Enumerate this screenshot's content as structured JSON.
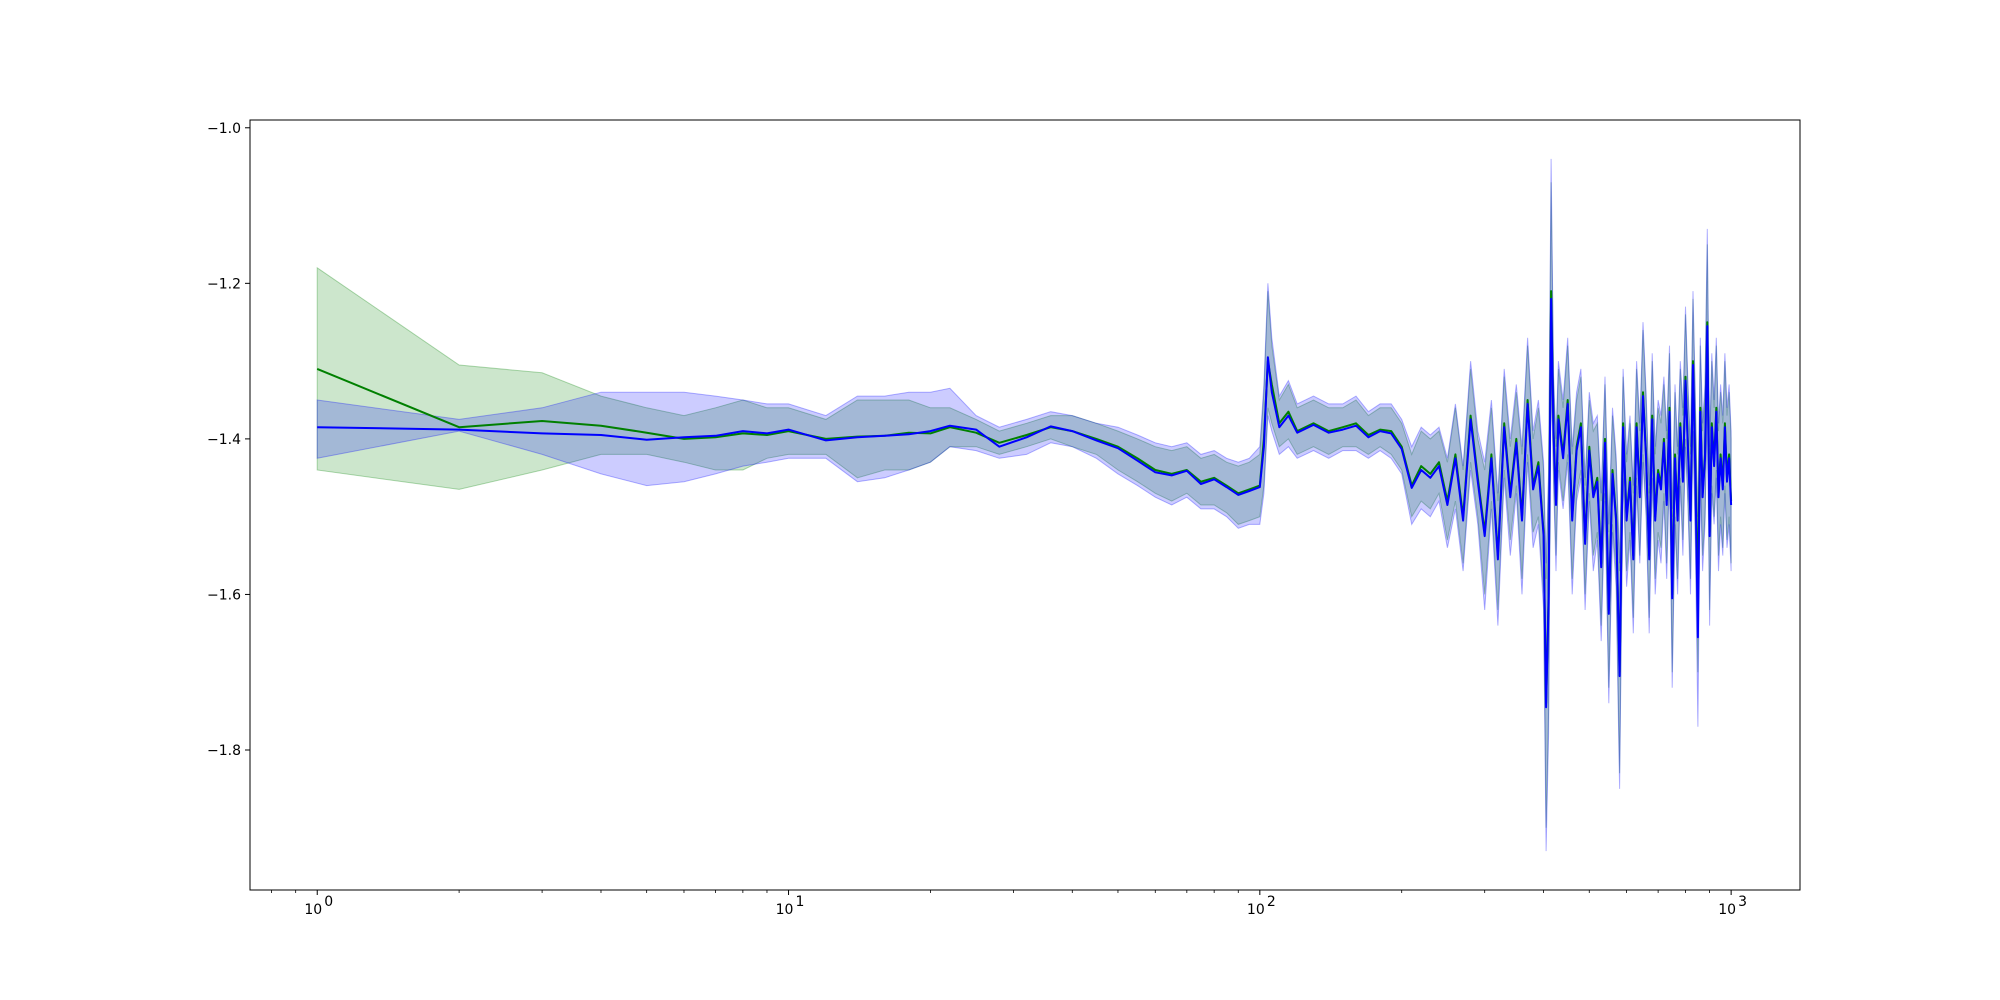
{
  "chart_data": {
    "type": "line",
    "title": "",
    "xlabel": "",
    "ylabel": "",
    "xscale": "log",
    "xlim": [
      0.72,
      1400
    ],
    "ylim": [
      -1.98,
      -0.99
    ],
    "grid": false,
    "xticks": [
      {
        "value": 1,
        "base": "10",
        "exp": "0"
      },
      {
        "value": 10,
        "base": "10",
        "exp": "1"
      },
      {
        "value": 100,
        "base": "10",
        "exp": "2"
      },
      {
        "value": 1000,
        "base": "10",
        "exp": "3"
      }
    ],
    "yticks": [
      {
        "value": -1.0,
        "label": "−1.0"
      },
      {
        "value": -1.2,
        "label": "−1.2"
      },
      {
        "value": -1.4,
        "label": "−1.4"
      },
      {
        "value": -1.6,
        "label": "−1.6"
      },
      {
        "value": -1.8,
        "label": "−1.8"
      }
    ],
    "series": [
      {
        "color": "#008000",
        "band_color": "#008000",
        "band_opacity": 0.2,
        "x": [
          1,
          2,
          3,
          4,
          5,
          6,
          7,
          8,
          9,
          10,
          12,
          14,
          16,
          18,
          20,
          22,
          25,
          28,
          32,
          36,
          40,
          45,
          50,
          55,
          60,
          65,
          70,
          75,
          80,
          85,
          90,
          95,
          100,
          102,
          104,
          106,
          110,
          115,
          120,
          130,
          140,
          150,
          160,
          170,
          180,
          190,
          200,
          210,
          220,
          230,
          240,
          250,
          260,
          270,
          280,
          290,
          300,
          310,
          320,
          330,
          340,
          350,
          360,
          370,
          380,
          390,
          400,
          405,
          410,
          415,
          420,
          425,
          430,
          440,
          450,
          460,
          470,
          480,
          490,
          500,
          510,
          520,
          530,
          540,
          550,
          560,
          570,
          580,
          590,
          600,
          610,
          620,
          630,
          640,
          650,
          660,
          670,
          680,
          690,
          700,
          710,
          720,
          730,
          740,
          750,
          760,
          770,
          780,
          790,
          800,
          810,
          820,
          830,
          840,
          850,
          860,
          870,
          880,
          890,
          900,
          910,
          920,
          930,
          940,
          950,
          960,
          970,
          980,
          990,
          1000
        ],
        "y": [
          -1.31,
          -1.385,
          -1.377,
          -1.383,
          -1.392,
          -1.4,
          -1.398,
          -1.393,
          -1.395,
          -1.39,
          -1.4,
          -1.397,
          -1.396,
          -1.392,
          -1.393,
          -1.385,
          -1.392,
          -1.405,
          -1.395,
          -1.385,
          -1.39,
          -1.4,
          -1.41,
          -1.425,
          -1.44,
          -1.445,
          -1.44,
          -1.455,
          -1.45,
          -1.46,
          -1.47,
          -1.465,
          -1.46,
          -1.4,
          -1.3,
          -1.33,
          -1.38,
          -1.365,
          -1.39,
          -1.38,
          -1.39,
          -1.385,
          -1.38,
          -1.395,
          -1.388,
          -1.39,
          -1.41,
          -1.46,
          -1.435,
          -1.445,
          -1.43,
          -1.48,
          -1.42,
          -1.5,
          -1.37,
          -1.45,
          -1.52,
          -1.42,
          -1.55,
          -1.38,
          -1.47,
          -1.4,
          -1.5,
          -1.35,
          -1.46,
          -1.43,
          -1.52,
          -1.74,
          -1.6,
          -1.21,
          -1.39,
          -1.48,
          -1.37,
          -1.42,
          -1.35,
          -1.5,
          -1.41,
          -1.38,
          -1.53,
          -1.41,
          -1.47,
          -1.45,
          -1.56,
          -1.4,
          -1.62,
          -1.44,
          -1.5,
          -1.7,
          -1.38,
          -1.5,
          -1.45,
          -1.55,
          -1.38,
          -1.47,
          -1.34,
          -1.42,
          -1.55,
          -1.37,
          -1.5,
          -1.44,
          -1.46,
          -1.4,
          -1.48,
          -1.36,
          -1.6,
          -1.42,
          -1.5,
          -1.38,
          -1.45,
          -1.32,
          -1.41,
          -1.5,
          -1.3,
          -1.44,
          -1.6,
          -1.36,
          -1.47,
          -1.42,
          -1.25,
          -1.52,
          -1.38,
          -1.43,
          -1.36,
          -1.47,
          -1.42,
          -1.46,
          -1.38,
          -1.45,
          -1.42,
          -1.48
        ],
        "lower": [
          -1.44,
          -1.465,
          -1.44,
          -1.42,
          -1.42,
          -1.43,
          -1.44,
          -1.44,
          -1.425,
          -1.42,
          -1.42,
          -1.45,
          -1.44,
          -1.44,
          -1.43,
          -1.41,
          -1.41,
          -1.42,
          -1.41,
          -1.4,
          -1.41,
          -1.42,
          -1.44,
          -1.455,
          -1.47,
          -1.48,
          -1.47,
          -1.485,
          -1.485,
          -1.495,
          -1.51,
          -1.505,
          -1.5,
          -1.46,
          -1.36,
          -1.38,
          -1.41,
          -1.4,
          -1.42,
          -1.41,
          -1.42,
          -1.41,
          -1.41,
          -1.42,
          -1.41,
          -1.42,
          -1.44,
          -1.5,
          -1.48,
          -1.49,
          -1.47,
          -1.53,
          -1.48,
          -1.56,
          -1.43,
          -1.5,
          -1.6,
          -1.48,
          -1.62,
          -1.44,
          -1.53,
          -1.46,
          -1.58,
          -1.42,
          -1.52,
          -1.5,
          -1.6,
          -1.9,
          -1.75,
          -1.3,
          -1.45,
          -1.55,
          -1.43,
          -1.48,
          -1.42,
          -1.58,
          -1.47,
          -1.44,
          -1.6,
          -1.47,
          -1.55,
          -1.52,
          -1.64,
          -1.47,
          -1.72,
          -1.51,
          -1.57,
          -1.83,
          -1.44,
          -1.57,
          -1.52,
          -1.63,
          -1.45,
          -1.55,
          -1.42,
          -1.49,
          -1.63,
          -1.44,
          -1.58,
          -1.52,
          -1.54,
          -1.47,
          -1.56,
          -1.43,
          -1.7,
          -1.5,
          -1.58,
          -1.45,
          -1.53,
          -1.4,
          -1.48,
          -1.58,
          -1.38,
          -1.52,
          -1.7,
          -1.44,
          -1.55,
          -1.5,
          -1.35,
          -1.62,
          -1.46,
          -1.5,
          -1.44,
          -1.55,
          -1.5,
          -1.54,
          -1.46,
          -1.53,
          -1.5,
          -1.56
        ],
        "upper": [
          -1.18,
          -1.305,
          -1.315,
          -1.345,
          -1.36,
          -1.37,
          -1.36,
          -1.35,
          -1.36,
          -1.36,
          -1.375,
          -1.35,
          -1.35,
          -1.35,
          -1.36,
          -1.36,
          -1.375,
          -1.39,
          -1.38,
          -1.37,
          -1.37,
          -1.38,
          -1.39,
          -1.4,
          -1.41,
          -1.415,
          -1.41,
          -1.425,
          -1.42,
          -1.43,
          -1.435,
          -1.43,
          -1.42,
          -1.34,
          -1.21,
          -1.28,
          -1.35,
          -1.33,
          -1.36,
          -1.35,
          -1.36,
          -1.36,
          -1.35,
          -1.37,
          -1.36,
          -1.36,
          -1.38,
          -1.42,
          -1.39,
          -1.4,
          -1.39,
          -1.43,
          -1.36,
          -1.44,
          -1.31,
          -1.4,
          -1.44,
          -1.36,
          -1.48,
          -1.32,
          -1.41,
          -1.34,
          -1.42,
          -1.28,
          -1.4,
          -1.36,
          -1.44,
          -1.58,
          -1.45,
          -1.07,
          -1.33,
          -1.41,
          -1.31,
          -1.36,
          -1.28,
          -1.42,
          -1.35,
          -1.32,
          -1.46,
          -1.35,
          -1.39,
          -1.38,
          -1.48,
          -1.33,
          -1.52,
          -1.37,
          -1.43,
          -1.57,
          -1.32,
          -1.43,
          -1.38,
          -1.47,
          -1.31,
          -1.39,
          -1.26,
          -1.35,
          -1.47,
          -1.3,
          -1.42,
          -1.36,
          -1.38,
          -1.33,
          -1.4,
          -1.29,
          -1.5,
          -1.34,
          -1.42,
          -1.31,
          -1.37,
          -1.24,
          -1.34,
          -1.42,
          -1.22,
          -1.36,
          -1.5,
          -1.28,
          -1.39,
          -1.34,
          -1.15,
          -1.42,
          -1.3,
          -1.36,
          -1.28,
          -1.39,
          -1.34,
          -1.38,
          -1.3,
          -1.37,
          -1.34,
          -1.4
        ]
      },
      {
        "color": "#0000ff",
        "band_color": "#0000ff",
        "band_opacity": 0.2,
        "x": [
          1,
          2,
          3,
          4,
          5,
          6,
          7,
          8,
          9,
          10,
          12,
          14,
          16,
          18,
          20,
          22,
          25,
          28,
          32,
          36,
          40,
          45,
          50,
          55,
          60,
          65,
          70,
          75,
          80,
          85,
          90,
          95,
          100,
          102,
          104,
          106,
          110,
          115,
          120,
          130,
          140,
          150,
          160,
          170,
          180,
          190,
          200,
          210,
          220,
          230,
          240,
          250,
          260,
          270,
          280,
          290,
          300,
          310,
          320,
          330,
          340,
          350,
          360,
          370,
          380,
          390,
          400,
          405,
          410,
          415,
          420,
          425,
          430,
          440,
          450,
          460,
          470,
          480,
          490,
          500,
          510,
          520,
          530,
          540,
          550,
          560,
          570,
          580,
          590,
          600,
          610,
          620,
          630,
          640,
          650,
          660,
          670,
          680,
          690,
          700,
          710,
          720,
          730,
          740,
          750,
          760,
          770,
          780,
          790,
          800,
          810,
          820,
          830,
          840,
          850,
          860,
          870,
          880,
          890,
          900,
          910,
          920,
          930,
          940,
          950,
          960,
          970,
          980,
          990,
          1000
        ],
        "y": [
          -1.385,
          -1.388,
          -1.393,
          -1.395,
          -1.401,
          -1.398,
          -1.396,
          -1.39,
          -1.393,
          -1.388,
          -1.402,
          -1.398,
          -1.396,
          -1.394,
          -1.39,
          -1.383,
          -1.388,
          -1.41,
          -1.398,
          -1.384,
          -1.39,
          -1.402,
          -1.412,
          -1.428,
          -1.443,
          -1.447,
          -1.441,
          -1.458,
          -1.452,
          -1.462,
          -1.472,
          -1.467,
          -1.462,
          -1.41,
          -1.295,
          -1.34,
          -1.385,
          -1.37,
          -1.392,
          -1.382,
          -1.392,
          -1.388,
          -1.383,
          -1.398,
          -1.39,
          -1.393,
          -1.413,
          -1.463,
          -1.44,
          -1.45,
          -1.435,
          -1.485,
          -1.425,
          -1.505,
          -1.375,
          -1.455,
          -1.525,
          -1.425,
          -1.555,
          -1.385,
          -1.475,
          -1.405,
          -1.505,
          -1.355,
          -1.465,
          -1.435,
          -1.525,
          -1.745,
          -1.61,
          -1.22,
          -1.395,
          -1.485,
          -1.375,
          -1.425,
          -1.355,
          -1.505,
          -1.415,
          -1.385,
          -1.535,
          -1.415,
          -1.475,
          -1.455,
          -1.565,
          -1.405,
          -1.625,
          -1.445,
          -1.505,
          -1.705,
          -1.385,
          -1.505,
          -1.455,
          -1.555,
          -1.385,
          -1.475,
          -1.345,
          -1.425,
          -1.555,
          -1.375,
          -1.505,
          -1.445,
          -1.465,
          -1.405,
          -1.485,
          -1.365,
          -1.605,
          -1.425,
          -1.505,
          -1.385,
          -1.455,
          -1.325,
          -1.415,
          -1.505,
          -1.305,
          -1.445,
          -1.655,
          -1.365,
          -1.475,
          -1.425,
          -1.255,
          -1.525,
          -1.385,
          -1.435,
          -1.365,
          -1.475,
          -1.425,
          -1.465,
          -1.385,
          -1.455,
          -1.425,
          -1.485
        ],
        "lower": [
          -1.425,
          -1.39,
          -1.42,
          -1.445,
          -1.46,
          -1.455,
          -1.445,
          -1.435,
          -1.43,
          -1.425,
          -1.425,
          -1.455,
          -1.45,
          -1.44,
          -1.43,
          -1.41,
          -1.415,
          -1.425,
          -1.42,
          -1.405,
          -1.41,
          -1.425,
          -1.445,
          -1.46,
          -1.475,
          -1.485,
          -1.475,
          -1.49,
          -1.49,
          -1.5,
          -1.515,
          -1.51,
          -1.51,
          -1.47,
          -1.37,
          -1.39,
          -1.42,
          -1.41,
          -1.425,
          -1.415,
          -1.425,
          -1.415,
          -1.415,
          -1.425,
          -1.415,
          -1.425,
          -1.445,
          -1.51,
          -1.49,
          -1.5,
          -1.48,
          -1.54,
          -1.49,
          -1.57,
          -1.44,
          -1.51,
          -1.62,
          -1.49,
          -1.64,
          -1.45,
          -1.55,
          -1.47,
          -1.6,
          -1.43,
          -1.54,
          -1.51,
          -1.62,
          -1.93,
          -1.78,
          -1.31,
          -1.46,
          -1.57,
          -1.44,
          -1.49,
          -1.43,
          -1.6,
          -1.48,
          -1.45,
          -1.62,
          -1.48,
          -1.57,
          -1.53,
          -1.66,
          -1.48,
          -1.74,
          -1.52,
          -1.59,
          -1.85,
          -1.45,
          -1.59,
          -1.53,
          -1.65,
          -1.46,
          -1.56,
          -1.43,
          -1.5,
          -1.65,
          -1.45,
          -1.6,
          -1.53,
          -1.56,
          -1.48,
          -1.58,
          -1.44,
          -1.72,
          -1.51,
          -1.6,
          -1.46,
          -1.55,
          -1.41,
          -1.49,
          -1.6,
          -1.39,
          -1.54,
          -1.77,
          -1.45,
          -1.57,
          -1.51,
          -1.36,
          -1.64,
          -1.47,
          -1.51,
          -1.45,
          -1.57,
          -1.51,
          -1.55,
          -1.47,
          -1.54,
          -1.51,
          -1.57
        ],
        "upper": [
          -1.35,
          -1.375,
          -1.36,
          -1.34,
          -1.34,
          -1.34,
          -1.345,
          -1.35,
          -1.355,
          -1.355,
          -1.37,
          -1.345,
          -1.345,
          -1.34,
          -1.34,
          -1.335,
          -1.37,
          -1.385,
          -1.375,
          -1.365,
          -1.37,
          -1.38,
          -1.385,
          -1.395,
          -1.405,
          -1.41,
          -1.405,
          -1.42,
          -1.415,
          -1.425,
          -1.43,
          -1.425,
          -1.41,
          -1.33,
          -1.2,
          -1.27,
          -1.345,
          -1.325,
          -1.355,
          -1.345,
          -1.355,
          -1.355,
          -1.345,
          -1.365,
          -1.355,
          -1.355,
          -1.375,
          -1.41,
          -1.385,
          -1.395,
          -1.385,
          -1.425,
          -1.355,
          -1.435,
          -1.3,
          -1.39,
          -1.43,
          -1.35,
          -1.47,
          -1.31,
          -1.4,
          -1.33,
          -1.41,
          -1.27,
          -1.39,
          -1.35,
          -1.43,
          -1.56,
          -1.44,
          -1.04,
          -1.32,
          -1.4,
          -1.3,
          -1.35,
          -1.27,
          -1.41,
          -1.34,
          -1.31,
          -1.45,
          -1.34,
          -1.38,
          -1.37,
          -1.47,
          -1.32,
          -1.51,
          -1.36,
          -1.42,
          -1.56,
          -1.31,
          -1.42,
          -1.37,
          -1.46,
          -1.3,
          -1.38,
          -1.25,
          -1.34,
          -1.46,
          -1.29,
          -1.41,
          -1.35,
          -1.37,
          -1.32,
          -1.39,
          -1.28,
          -1.49,
          -1.33,
          -1.41,
          -1.3,
          -1.36,
          -1.23,
          -1.33,
          -1.41,
          -1.21,
          -1.35,
          -1.54,
          -1.27,
          -1.38,
          -1.33,
          -1.13,
          -1.41,
          -1.29,
          -1.35,
          -1.27,
          -1.38,
          -1.33,
          -1.37,
          -1.29,
          -1.36,
          -1.33,
          -1.39
        ]
      }
    ]
  }
}
